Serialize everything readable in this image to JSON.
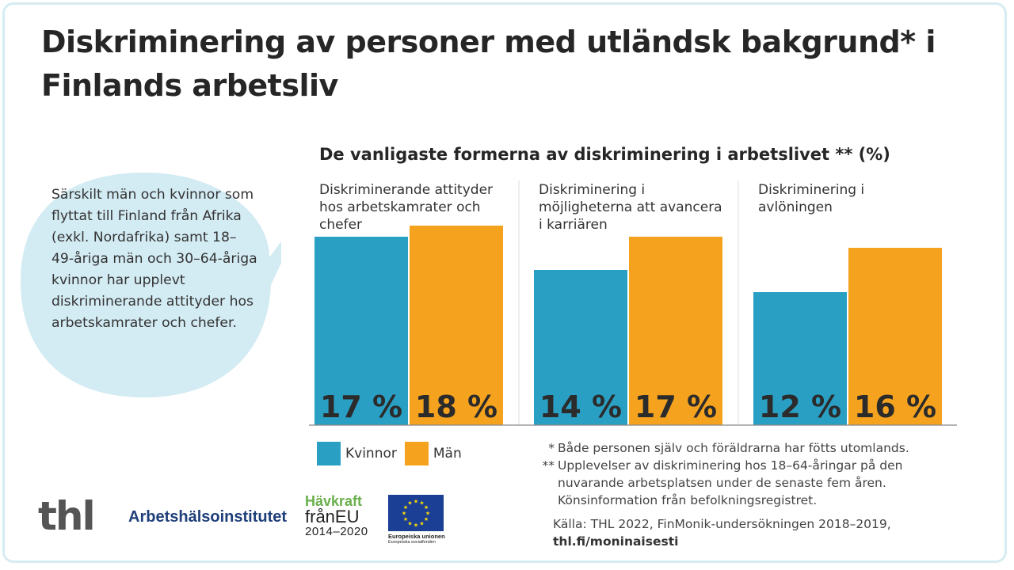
{
  "title": "Diskriminering av personer med utländsk bakgrund* i Finlands arbetsliv",
  "callout": "Särskilt män och kvinnor som flyttat till Finland från Afrika (exkl. Nordafrika) samt 18–49-åriga män och 30–64-åriga kvinnor har upplevt diskriminerande attityder hos arbetskamrater och chefer.",
  "colors": {
    "kvinnor": "#2a9fc4",
    "man": "#f5a31e",
    "bubble": "#d3ebf3",
    "frame": "#d6ecf2"
  },
  "chart_data": {
    "type": "bar",
    "title": "De vanligaste formerna av diskriminering i arbetslivet ** (%)",
    "categories": [
      "Diskriminerande attityder hos arbetskamrater och chefer",
      "Diskriminering i möjligheterna att avancera i karriären",
      "Diskriminering i avlöningen"
    ],
    "category_lines": [
      [
        "Diskriminerande  attityder",
        "hos arbetskamrater och",
        "chefer"
      ],
      [
        "Diskriminering  i",
        "möjligheterna  att avancera",
        "i karriären"
      ],
      [
        "Diskriminering  i",
        "avlöningen"
      ]
    ],
    "series": [
      {
        "name": "Kvinnor",
        "values": [
          17,
          14,
          12
        ],
        "labels": [
          "17 %",
          "14 %",
          "12 %"
        ]
      },
      {
        "name": "Män",
        "values": [
          18,
          17,
          16
        ],
        "labels": [
          "18 %",
          "17 %",
          "16 %"
        ]
      }
    ],
    "ylim": [
      0,
      23
    ],
    "grid": false,
    "legend": "bottom-left"
  },
  "notes": [
    {
      "mark": "*",
      "text": "Både personen själv och föräldrarna har fötts utomlands."
    },
    {
      "mark": "**",
      "lines": [
        "Upplevelser av diskriminering hos 18–64-åringar på den",
        "nuvarande arbetsplatsen under de senaste fem åren.",
        "Könsinformation från befolkningsregistret."
      ]
    }
  ],
  "source": {
    "text": "Källa: THL 2022, FinMonik-undersökningen 2018–2019,",
    "url": "thl.fi/moninaisesti"
  },
  "logos": {
    "thl": "thl",
    "ahi": "Arbetshälsoinstitutet",
    "havkraft_1": "Hävkraft",
    "havkraft_2": "frånEU",
    "havkraft_3": "2014–2020",
    "eu_1": "Europeiska unionen",
    "eu_2": "Europeiska socialfonden"
  }
}
